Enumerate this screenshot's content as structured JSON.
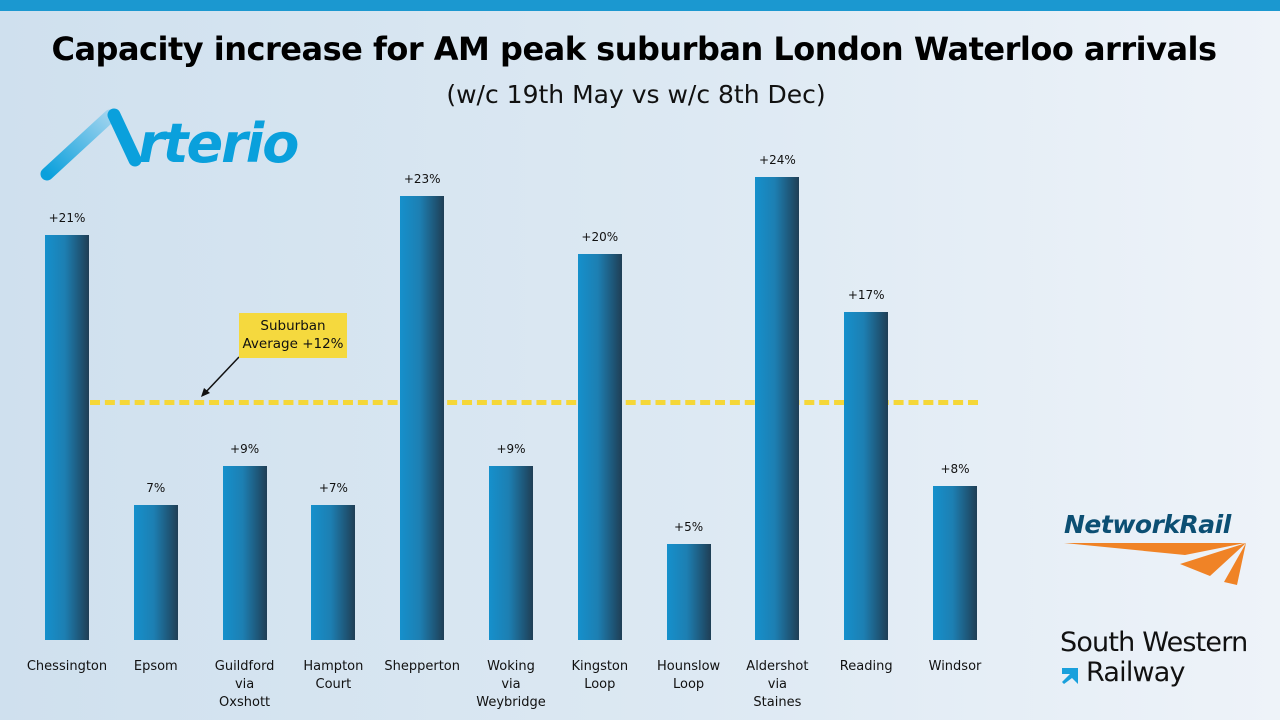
{
  "header": {
    "title": "Capacity increase for AM peak suburban  London Waterloo arrivals",
    "subtitle": "(w/c 19th May vs w/c 8th Dec)"
  },
  "logos": {
    "arterio": "Arterio",
    "network_rail": "NetworkRail",
    "swr_line1": "South Western",
    "swr_line2": "Railway"
  },
  "colors": {
    "bar": "#1590cc",
    "bar_dark": "#1f3e55",
    "average_line": "#f5d738",
    "topbar": "#1b98d0",
    "network_rail_orange": "#f08326"
  },
  "chart_data": {
    "type": "bar",
    "title": "Capacity increase for AM peak suburban  London Waterloo arrivals",
    "subtitle": "(w/c 19th May vs w/c 8th Dec)",
    "categories": [
      "Chessington",
      "Epsom",
      "Guildford\nvia\nOxshott",
      "Hampton\nCourt",
      "Shepperton",
      "Woking\nvia\nWeybridge",
      "Kingston\nLoop",
      "Hounslow\nLoop",
      "Aldershot\nvia\nStaines",
      "Reading",
      "Windsor"
    ],
    "values": [
      21,
      7,
      9,
      7,
      23,
      9,
      20,
      5,
      24,
      17,
      8
    ],
    "data_labels": [
      "+21%",
      "7%",
      "+9%",
      "+7%",
      "+23%",
      "+9%",
      "+20%",
      "+5%",
      "+24%",
      "+17%",
      "+8%"
    ],
    "ylim": [
      0,
      24
    ],
    "grid": false,
    "reference_line": {
      "value": 12,
      "label_line1": "Suburban",
      "label_line2": "Average +12%",
      "style": "dashed"
    }
  }
}
